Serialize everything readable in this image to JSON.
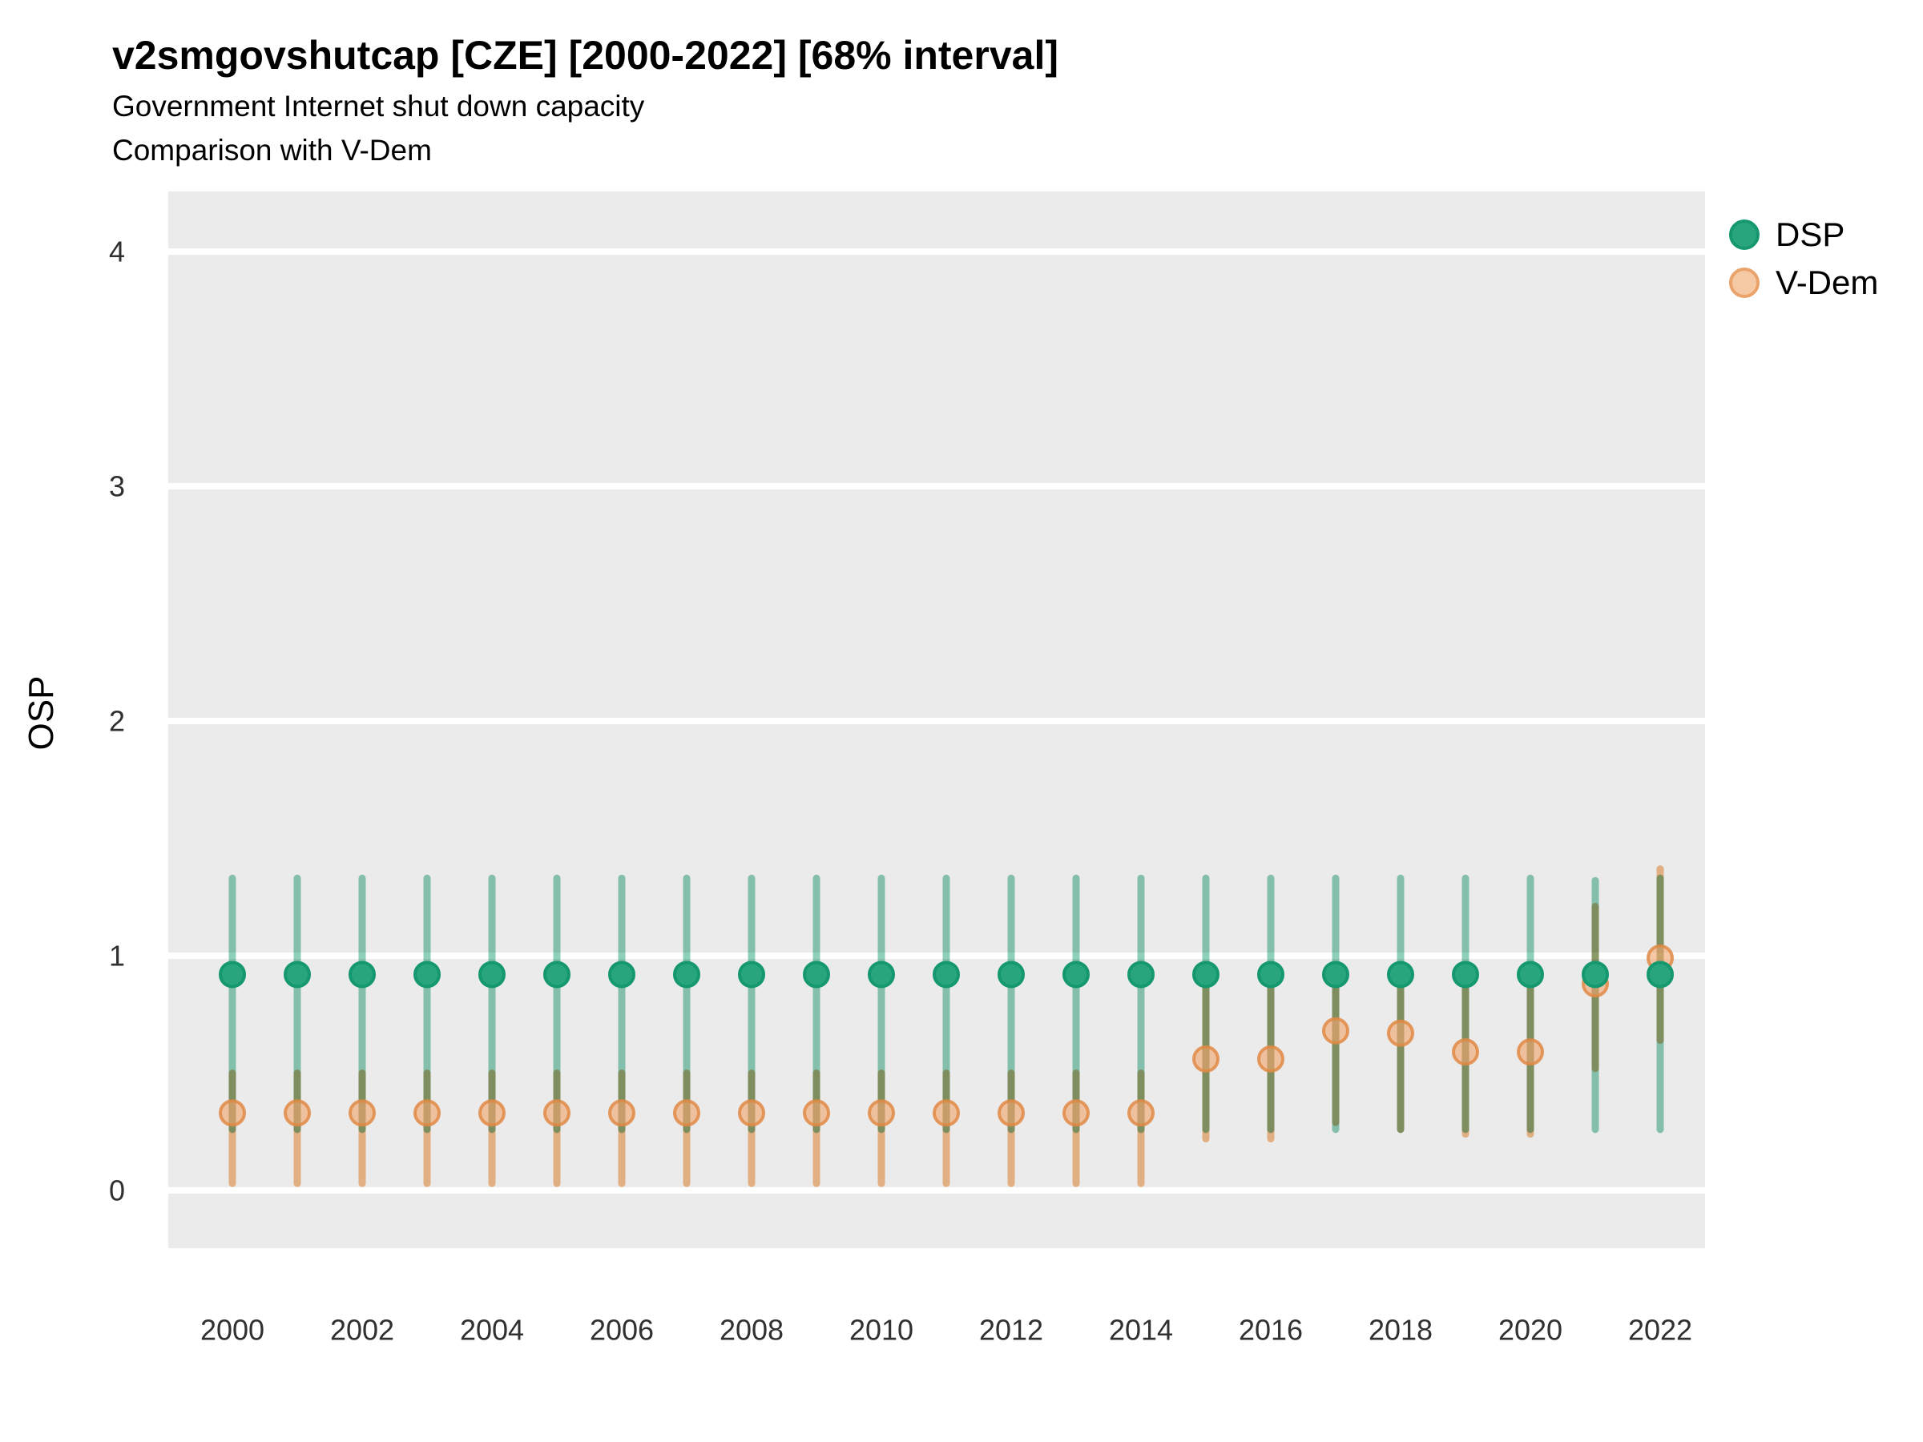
{
  "header": {
    "title": "v2smgovshutcap [CZE] [2000-2022] [68% interval]",
    "subtitle1": "Government Internet shut down capacity",
    "subtitle2": "Comparison with V-Dem"
  },
  "legend": {
    "items": [
      {
        "label": "DSP",
        "fill": "#29A57E",
        "stroke": "#159870"
      },
      {
        "label": "V-Dem",
        "fill": "#F5C9A4",
        "stroke": "#E9A36B"
      }
    ]
  },
  "chart_data": {
    "type": "pointrange",
    "title": "v2smgovshutcap [CZE] [2000-2022] [68% interval]",
    "subtitle": [
      "Government Internet shut down capacity",
      "Comparison with V-Dem"
    ],
    "xlabel": "",
    "ylabel": "OSP",
    "interval": "68%",
    "x_ticks": [
      2000,
      2002,
      2004,
      2006,
      2008,
      2010,
      2012,
      2014,
      2016,
      2018,
      2020,
      2022
    ],
    "y_ticks": [
      0,
      1,
      2,
      3,
      4
    ],
    "ylim": [
      -0.25,
      4.26
    ],
    "panel_background": "#EBEBEB",
    "gridline_color": "#FFFFFF",
    "legend_position": "top-right",
    "series": [
      {
        "name": "DSP",
        "point_fill": "#29A57E",
        "point_stroke": "#159870",
        "interval_color": "#8FD0BA",
        "points": [
          {
            "year": 2000,
            "value": 0.92,
            "lo": 0.26,
            "hi": 1.33
          },
          {
            "year": 2001,
            "value": 0.92,
            "lo": 0.26,
            "hi": 1.33
          },
          {
            "year": 2002,
            "value": 0.92,
            "lo": 0.26,
            "hi": 1.33
          },
          {
            "year": 2003,
            "value": 0.92,
            "lo": 0.26,
            "hi": 1.33
          },
          {
            "year": 2004,
            "value": 0.92,
            "lo": 0.26,
            "hi": 1.33
          },
          {
            "year": 2005,
            "value": 0.92,
            "lo": 0.26,
            "hi": 1.33
          },
          {
            "year": 2006,
            "value": 0.92,
            "lo": 0.26,
            "hi": 1.33
          },
          {
            "year": 2007,
            "value": 0.92,
            "lo": 0.26,
            "hi": 1.33
          },
          {
            "year": 2008,
            "value": 0.92,
            "lo": 0.26,
            "hi": 1.33
          },
          {
            "year": 2009,
            "value": 0.92,
            "lo": 0.26,
            "hi": 1.33
          },
          {
            "year": 2010,
            "value": 0.92,
            "lo": 0.26,
            "hi": 1.33
          },
          {
            "year": 2011,
            "value": 0.92,
            "lo": 0.26,
            "hi": 1.33
          },
          {
            "year": 2012,
            "value": 0.92,
            "lo": 0.26,
            "hi": 1.33
          },
          {
            "year": 2013,
            "value": 0.92,
            "lo": 0.26,
            "hi": 1.33
          },
          {
            "year": 2014,
            "value": 0.92,
            "lo": 0.26,
            "hi": 1.33
          },
          {
            "year": 2015,
            "value": 0.92,
            "lo": 0.26,
            "hi": 1.33
          },
          {
            "year": 2016,
            "value": 0.92,
            "lo": 0.26,
            "hi": 1.33
          },
          {
            "year": 2017,
            "value": 0.92,
            "lo": 0.26,
            "hi": 1.33
          },
          {
            "year": 2018,
            "value": 0.92,
            "lo": 0.26,
            "hi": 1.33
          },
          {
            "year": 2019,
            "value": 0.92,
            "lo": 0.26,
            "hi": 1.33
          },
          {
            "year": 2020,
            "value": 0.92,
            "lo": 0.26,
            "hi": 1.33
          },
          {
            "year": 2021,
            "value": 0.92,
            "lo": 0.26,
            "hi": 1.32
          },
          {
            "year": 2022,
            "value": 0.92,
            "lo": 0.26,
            "hi": 1.33
          }
        ]
      },
      {
        "name": "V-Dem",
        "point_fill": "rgba(242,166,110,0.62)",
        "point_stroke": "rgba(224,138,69,0.85)",
        "interval_color": "#F5BE8D",
        "points": [
          {
            "year": 2000,
            "value": 0.33,
            "lo": 0.03,
            "hi": 0.5
          },
          {
            "year": 2001,
            "value": 0.33,
            "lo": 0.03,
            "hi": 0.5
          },
          {
            "year": 2002,
            "value": 0.33,
            "lo": 0.03,
            "hi": 0.5
          },
          {
            "year": 2003,
            "value": 0.33,
            "lo": 0.03,
            "hi": 0.5
          },
          {
            "year": 2004,
            "value": 0.33,
            "lo": 0.03,
            "hi": 0.5
          },
          {
            "year": 2005,
            "value": 0.33,
            "lo": 0.03,
            "hi": 0.5
          },
          {
            "year": 2006,
            "value": 0.33,
            "lo": 0.03,
            "hi": 0.5
          },
          {
            "year": 2007,
            "value": 0.33,
            "lo": 0.03,
            "hi": 0.5
          },
          {
            "year": 2008,
            "value": 0.33,
            "lo": 0.03,
            "hi": 0.5
          },
          {
            "year": 2009,
            "value": 0.33,
            "lo": 0.03,
            "hi": 0.5
          },
          {
            "year": 2010,
            "value": 0.33,
            "lo": 0.03,
            "hi": 0.5
          },
          {
            "year": 2011,
            "value": 0.33,
            "lo": 0.03,
            "hi": 0.5
          },
          {
            "year": 2012,
            "value": 0.33,
            "lo": 0.03,
            "hi": 0.5
          },
          {
            "year": 2013,
            "value": 0.33,
            "lo": 0.03,
            "hi": 0.5
          },
          {
            "year": 2014,
            "value": 0.33,
            "lo": 0.03,
            "hi": 0.5
          },
          {
            "year": 2015,
            "value": 0.56,
            "lo": 0.22,
            "hi": 0.86
          },
          {
            "year": 2016,
            "value": 0.56,
            "lo": 0.22,
            "hi": 0.86
          },
          {
            "year": 2017,
            "value": 0.68,
            "lo": 0.29,
            "hi": 0.87
          },
          {
            "year": 2018,
            "value": 0.67,
            "lo": 0.26,
            "hi": 0.87
          },
          {
            "year": 2019,
            "value": 0.59,
            "lo": 0.24,
            "hi": 0.86
          },
          {
            "year": 2020,
            "value": 0.59,
            "lo": 0.24,
            "hi": 0.86
          },
          {
            "year": 2021,
            "value": 0.88,
            "lo": 0.52,
            "hi": 1.21
          },
          {
            "year": 2022,
            "value": 0.99,
            "lo": 0.64,
            "hi": 1.37
          }
        ]
      }
    ]
  }
}
